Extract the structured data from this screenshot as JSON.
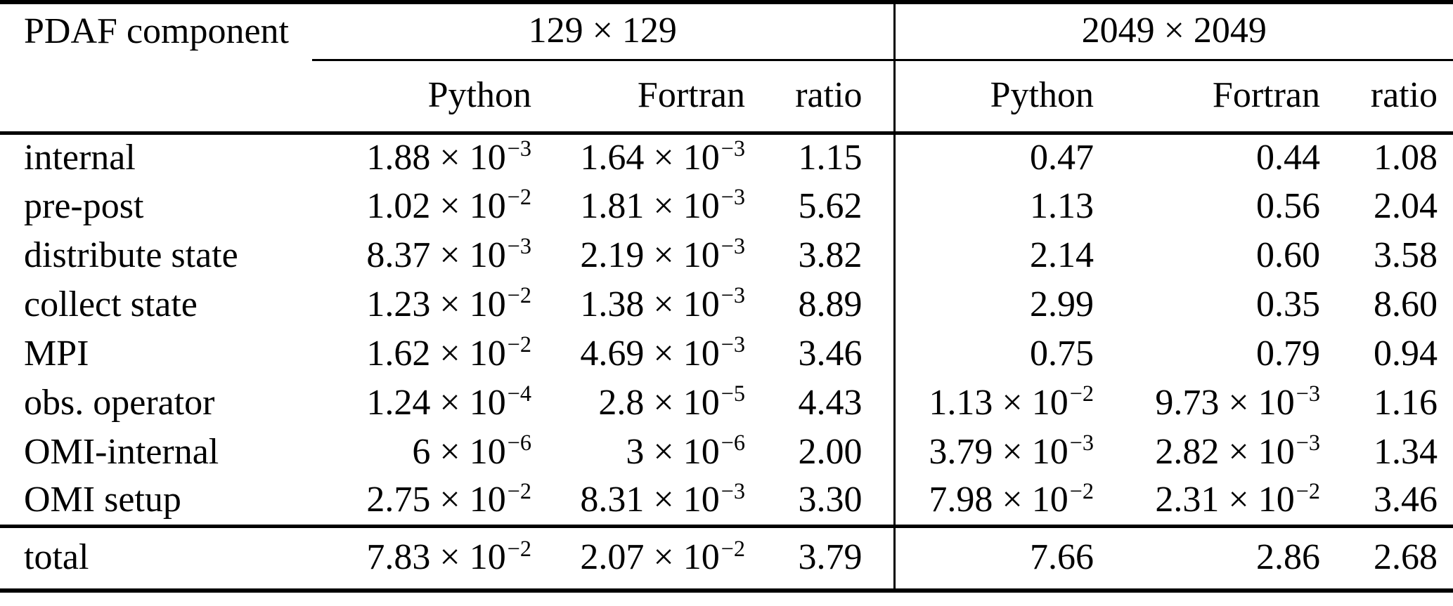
{
  "colors": {
    "background": "#ffffff",
    "text": "#000000",
    "rule": "#000000"
  },
  "table": {
    "corner_header": "PDAF component",
    "group_headers": [
      "129 × 129",
      "2049 × 2049"
    ],
    "sub_headers": [
      "Python",
      "Fortran",
      "ratio"
    ],
    "rows": [
      {
        "component": "internal",
        "values": [
          "1.88 × 10^−3",
          "1.64 × 10^−3",
          "1.15",
          "0.47",
          "0.44",
          "1.08"
        ]
      },
      {
        "component": "pre-post",
        "values": [
          "1.02 × 10^−2",
          "1.81 × 10^−3",
          "5.62",
          "1.13",
          "0.56",
          "2.04"
        ]
      },
      {
        "component": "distribute state",
        "values": [
          "8.37 × 10^−3",
          "2.19 × 10^−3",
          "3.82",
          "2.14",
          "0.60",
          "3.58"
        ]
      },
      {
        "component": "collect state",
        "values": [
          "1.23 × 10^−2",
          "1.38 × 10^−3",
          "8.89",
          "2.99",
          "0.35",
          "8.60"
        ]
      },
      {
        "component": "MPI",
        "values": [
          "1.62 × 10^−2",
          "4.69 × 10^−3",
          "3.46",
          "0.75",
          "0.79",
          "0.94"
        ]
      },
      {
        "component": "obs. operator",
        "values": [
          "1.24 × 10^−4",
          "2.8 × 10^−5",
          "4.43",
          "1.13 × 10^−2",
          "9.73 × 10^−3",
          "1.16"
        ]
      },
      {
        "component": "OMI-internal",
        "values": [
          "6 × 10^−6",
          "3 × 10^−6",
          "2.00",
          "3.79 × 10^−3",
          "2.82 × 10^−3",
          "1.34"
        ]
      },
      {
        "component": "OMI setup",
        "values": [
          "2.75 × 10^−2",
          "8.31 × 10^−3",
          "3.30",
          "7.98 × 10^−2",
          "2.31 × 10^−2",
          "3.46"
        ]
      }
    ],
    "total_row": {
      "component": "total",
      "values": [
        "7.83 × 10^−2",
        "2.07 × 10^−2",
        "3.79",
        "7.66",
        "2.86",
        "2.68"
      ]
    }
  }
}
